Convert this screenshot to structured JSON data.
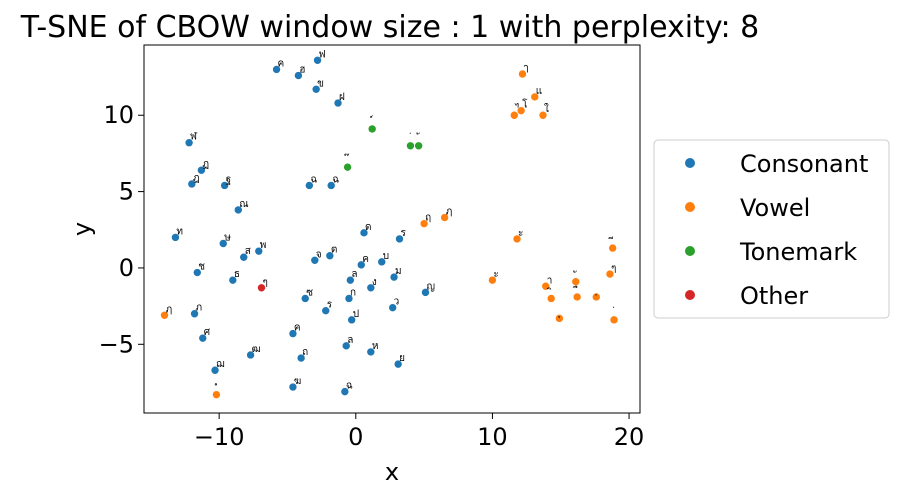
{
  "chart_data": {
    "type": "scatter",
    "title": "T-SNE of CBOW window size : 1 with perplexity: 8",
    "xlabel": "x",
    "ylabel": "y",
    "xlim": [
      -15.5,
      20.8
    ],
    "ylim": [
      -9.5,
      14.6
    ],
    "xticks": [
      -10,
      0,
      10,
      20
    ],
    "xtick_labels": [
      "−10",
      "0",
      "10",
      "20"
    ],
    "yticks": [
      -5,
      0,
      5,
      10
    ],
    "ytick_labels": [
      "−5",
      "0",
      "5",
      "10"
    ],
    "grid": false,
    "legend_position": "right",
    "series": [
      {
        "name": "Consonant",
        "color": "#1f77b4",
        "points": [
          {
            "x": -5.8,
            "y": 13.0,
            "label": "ค"
          },
          {
            "x": -4.2,
            "y": 12.6,
            "label": "ฮ"
          },
          {
            "x": -2.8,
            "y": 13.6,
            "label": "ฟ"
          },
          {
            "x": -2.9,
            "y": 11.7,
            "label": "ข"
          },
          {
            "x": -1.3,
            "y": 10.8,
            "label": "ฝ"
          },
          {
            "x": -12.2,
            "y": 8.2,
            "label": "ฬ"
          },
          {
            "x": -11.3,
            "y": 6.4,
            "label": "ฏ"
          },
          {
            "x": -12.0,
            "y": 5.5,
            "label": "ฎ"
          },
          {
            "x": -9.6,
            "y": 5.4,
            "label": "ฐ"
          },
          {
            "x": -8.6,
            "y": 3.8,
            "label": "ณ"
          },
          {
            "x": -3.4,
            "y": 5.4,
            "label": "ฉ"
          },
          {
            "x": -1.8,
            "y": 5.4,
            "label": "ฉ"
          },
          {
            "x": -13.2,
            "y": 2.0,
            "label": "ท"
          },
          {
            "x": -9.7,
            "y": 1.6,
            "label": "ษ"
          },
          {
            "x": -8.2,
            "y": 0.7,
            "label": "ส"
          },
          {
            "x": -7.1,
            "y": 1.1,
            "label": "พ"
          },
          {
            "x": -11.6,
            "y": -0.3,
            "label": "ช"
          },
          {
            "x": -9.0,
            "y": -0.8,
            "label": "ธ"
          },
          {
            "x": -11.8,
            "y": -3.0,
            "label": "ภ"
          },
          {
            "x": -11.2,
            "y": -4.6,
            "label": "ศ"
          },
          {
            "x": -10.3,
            "y": -6.7,
            "label": "ฌ"
          },
          {
            "x": -7.7,
            "y": -5.7,
            "label": "ฒ"
          },
          {
            "x": -4.6,
            "y": -7.8,
            "label": "ฆ"
          },
          {
            "x": -4.6,
            "y": -4.3,
            "label": "ค"
          },
          {
            "x": -4.0,
            "y": -5.9,
            "label": "ถ"
          },
          {
            "x": -3.7,
            "y": -2.0,
            "label": "ซ"
          },
          {
            "x": -3.0,
            "y": 0.5,
            "label": "จ"
          },
          {
            "x": -1.9,
            "y": 0.8,
            "label": "ต"
          },
          {
            "x": -2.2,
            "y": -2.8,
            "label": "ร"
          },
          {
            "x": -0.5,
            "y": -2.0,
            "label": "ก"
          },
          {
            "x": -0.4,
            "y": -0.8,
            "label": "ล"
          },
          {
            "x": -0.7,
            "y": -5.1,
            "label": "ล"
          },
          {
            "x": -0.8,
            "y": -8.1,
            "label": "ฉ"
          },
          {
            "x": -0.3,
            "y": -3.4,
            "label": "ป"
          },
          {
            "x": 0.4,
            "y": 0.2,
            "label": "ค"
          },
          {
            "x": 0.6,
            "y": 2.3,
            "label": "ด"
          },
          {
            "x": 1.1,
            "y": -1.3,
            "label": "ง"
          },
          {
            "x": 1.1,
            "y": -5.5,
            "label": "ห"
          },
          {
            "x": 1.9,
            "y": 0.4,
            "label": "บ"
          },
          {
            "x": 2.8,
            "y": -0.6,
            "label": "ม"
          },
          {
            "x": 3.2,
            "y": 1.9,
            "label": "ร"
          },
          {
            "x": 2.7,
            "y": -2.6,
            "label": "ว"
          },
          {
            "x": 3.1,
            "y": -6.3,
            "label": "ย"
          },
          {
            "x": 5.1,
            "y": -1.6,
            "label": "ญ"
          }
        ]
      },
      {
        "name": "Vowel",
        "color": "#ff7f0e",
        "points": [
          {
            "x": 12.2,
            "y": 12.7,
            "label": "ๅ"
          },
          {
            "x": 13.1,
            "y": 11.2,
            "label": "แ"
          },
          {
            "x": 11.6,
            "y": 10.0,
            "label": "ไ"
          },
          {
            "x": 12.1,
            "y": 10.3,
            "label": "โ"
          },
          {
            "x": 13.7,
            "y": 10.0,
            "label": "ใ"
          },
          {
            "x": 6.5,
            "y": 3.3,
            "label": "ฦ"
          },
          {
            "x": 5.0,
            "y": 2.9,
            "label": "ฤ"
          },
          {
            "x": 11.8,
            "y": 1.9,
            "label": "ะ"
          },
          {
            "x": 10.0,
            "y": -0.8,
            "label": "ะ"
          },
          {
            "x": 13.9,
            "y": -1.2,
            "label": "า"
          },
          {
            "x": 14.3,
            "y": -2.0,
            "label": "ิ"
          },
          {
            "x": 14.9,
            "y": -3.3,
            "label": "ุ"
          },
          {
            "x": 16.1,
            "y": -0.9,
            "label": "ั"
          },
          {
            "x": 16.2,
            "y": -1.9,
            "label": "ื"
          },
          {
            "x": 17.6,
            "y": -1.9,
            "label": "ฺ"
          },
          {
            "x": 18.6,
            "y": -0.4,
            "label": "ๆ"
          },
          {
            "x": 18.8,
            "y": 1.3,
            "label": "ี"
          },
          {
            "x": 18.9,
            "y": -3.4,
            "label": "่"
          },
          {
            "x": -14.0,
            "y": -3.1,
            "label": "ฦ"
          },
          {
            "x": -10.2,
            "y": -8.3,
            "label": "ํ"
          }
        ]
      },
      {
        "name": "Tonemark",
        "color": "#2ca02c",
        "points": [
          {
            "x": 1.2,
            "y": 9.1,
            "label": "์"
          },
          {
            "x": 4.0,
            "y": 8.0,
            "label": "่"
          },
          {
            "x": 4.6,
            "y": 8.0,
            "label": "้"
          },
          {
            "x": -0.6,
            "y": 6.6,
            "label": "๊"
          }
        ]
      },
      {
        "name": "Other",
        "color": "#d62728",
        "points": [
          {
            "x": -6.9,
            "y": -1.3,
            "label": "ๆ"
          }
        ]
      }
    ]
  }
}
